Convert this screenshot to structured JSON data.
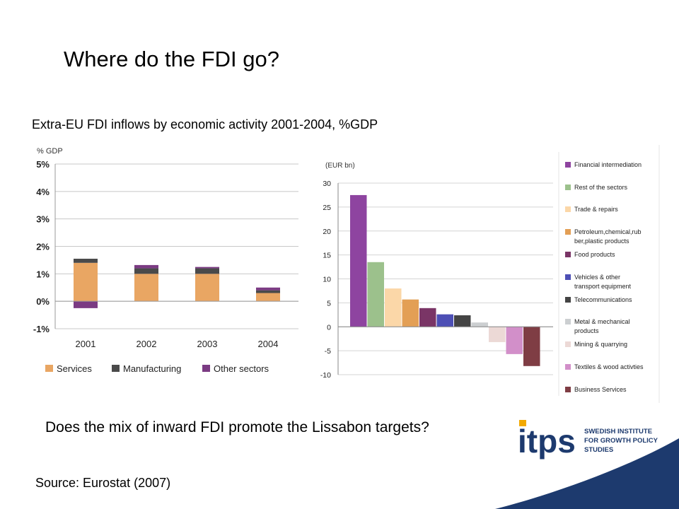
{
  "slide": {
    "title": "Where do the FDI go?",
    "subtitle": "Extra-EU FDI inflows by economic activity 2001-2004, %GDP",
    "question": "Does the mix of inward FDI promote the Lissabon targets?",
    "source": "Source: Eurostat (2007)"
  },
  "logo": {
    "mark": "itps",
    "line1": "SWEDISH INSTITUTE",
    "line2": "FOR GROWTH POLICY",
    "line3": "STUDIES",
    "accent": "#1d3a6e",
    "highlight": "#f2a900"
  },
  "chart_data": [
    {
      "type": "bar",
      "stacked": true,
      "ylabel": "% GDP",
      "categories": [
        "2001",
        "2002",
        "2003",
        "2004"
      ],
      "series": [
        {
          "name": "Services",
          "color": "#e9a663",
          "values": [
            1.4,
            1.0,
            1.0,
            0.3
          ]
        },
        {
          "name": "Manufacturing",
          "color": "#4a4a4a",
          "values": [
            0.15,
            0.2,
            0.2,
            0.1
          ]
        },
        {
          "name": "Other sectors",
          "color": "#7b3b83",
          "values": [
            -0.25,
            0.12,
            0.05,
            0.1
          ]
        }
      ],
      "ylim": [
        -1,
        5
      ],
      "yticks": [
        -1,
        0,
        1,
        2,
        3,
        4,
        5
      ],
      "ytick_labels": [
        "-1%",
        "0%",
        "1%",
        "2%",
        "3%",
        "4%",
        "5%"
      ],
      "grid": true,
      "legend": "bottom"
    },
    {
      "type": "bar",
      "ylabel": "(EUR bn)",
      "categories": [
        "Financial intermediation",
        "Rest of the sectors",
        "Trade & repairs",
        "Petroleum,chemical,rubber,plastic products",
        "Food products",
        "Vehicles & other transport equipment",
        "Telecommunications",
        "Metal & mechanical products",
        "Mining & quarrying",
        "Textiles & wood activities",
        "Business Services"
      ],
      "values": [
        27.5,
        13.5,
        8,
        5.7,
        3.9,
        2.6,
        2.4,
        0.9,
        -3.2,
        -5.7,
        -8.2
      ],
      "colors": [
        "#8e44a0",
        "#9cc18c",
        "#fbd7a8",
        "#e39f55",
        "#7a3566",
        "#4d4fb5",
        "#444444",
        "#cccfd1",
        "#ecd9d6",
        "#d28fc9",
        "#7f3d44"
      ],
      "legend_lines": [
        [
          "Financial intermediation"
        ],
        [
          "Rest of the sectors"
        ],
        [
          "Trade & repairs"
        ],
        [
          "Petroleum,chemical,rub",
          "ber,plastic products"
        ],
        [
          "Food products"
        ],
        [
          "Vehicles & other",
          "transport equipment"
        ],
        [
          "Telecommunications"
        ],
        [
          "Metal & mechanical",
          "products"
        ],
        [
          "Mining & quarrying"
        ],
        [
          "Textiles & wood activties"
        ],
        [
          "Business Services"
        ]
      ],
      "ylim": [
        -10,
        30
      ],
      "yticks": [
        -10,
        -5,
        0,
        5,
        10,
        15,
        20,
        25,
        30
      ],
      "grid": true,
      "legend": "right"
    }
  ]
}
